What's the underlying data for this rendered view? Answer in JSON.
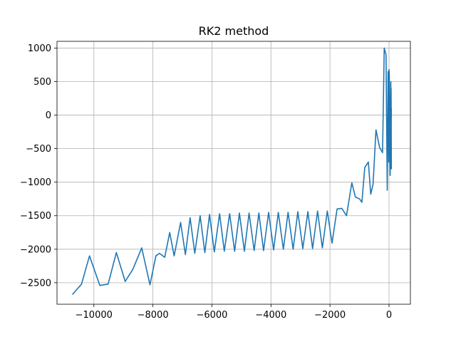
{
  "chart_data": {
    "type": "line",
    "title": "RK2 method",
    "xlabel": "",
    "ylabel": "",
    "xlim": [
      -11250,
      725
    ],
    "ylim": [
      -2820,
      1100
    ],
    "xticks": [
      -10000,
      -8000,
      -6000,
      -4000,
      -2000,
      0
    ],
    "xtick_labels": [
      "−10000",
      "−8000",
      "−6000",
      "−4000",
      "−2000",
      "0"
    ],
    "yticks": [
      -2500,
      -2000,
      -1500,
      -1000,
      -500,
      0,
      500,
      1000
    ],
    "ytick_labels": [
      "−2500",
      "−2000",
      "−1500",
      "−1000",
      "−500",
      "0",
      "500",
      "1000"
    ],
    "grid": true,
    "line_color": "#1f77b4",
    "series": [
      {
        "x": [
          -10720,
          -10420,
          -10150,
          -9800,
          -9520,
          -9240,
          -8940,
          -8680,
          -8380,
          -8100,
          -7900,
          -7780,
          -7600,
          -7430,
          -7280,
          -7060,
          -6900,
          -6740,
          -6580,
          -6400,
          -6240,
          -6080,
          -5920,
          -5740,
          -5580,
          -5400,
          -5230,
          -5070,
          -4900,
          -4740,
          -4570,
          -4410,
          -4250,
          -4080,
          -3910,
          -3750,
          -3580,
          -3420,
          -3250,
          -3090,
          -2920,
          -2750,
          -2590,
          -2420,
          -2260,
          -2090,
          -1930,
          -1760,
          -1600,
          -1440,
          -1260,
          -1140,
          -1000,
          -920,
          -820,
          -700,
          -620,
          -540,
          -440,
          -320,
          -220,
          -160,
          -100,
          -60,
          -30,
          -10,
          0,
          10,
          30,
          60,
          80,
          70,
          40,
          0,
          -20,
          20,
          60,
          80,
          40,
          -10,
          -30,
          10,
          50,
          70,
          30,
          -10,
          0,
          30,
          70,
          60,
          10,
          -20,
          0,
          50,
          20
        ],
        "y": [
          -2670,
          -2520,
          -2100,
          -2540,
          -2520,
          -2050,
          -2480,
          -2300,
          -1980,
          -2530,
          -2100,
          -2060,
          -2120,
          -1750,
          -2100,
          -1600,
          -2080,
          -1530,
          -2060,
          -1500,
          -2050,
          -1480,
          -2040,
          -1470,
          -2030,
          -1470,
          -2030,
          -1460,
          -2030,
          -1460,
          -2020,
          -1460,
          -2020,
          -1450,
          -2010,
          -1450,
          -2000,
          -1450,
          -2000,
          -1440,
          -1990,
          -1440,
          -1990,
          -1430,
          -1980,
          -1430,
          -1910,
          -1400,
          -1390,
          -1500,
          -1010,
          -1220,
          -1250,
          -1300,
          -780,
          -700,
          -1180,
          -1030,
          -220,
          -480,
          -560,
          1000,
          900,
          -1120,
          650,
          -700,
          680,
          600,
          -600,
          500,
          -800,
          400,
          -900,
          300,
          -400,
          200,
          -700,
          100,
          -300,
          0,
          -500,
          -100,
          -200,
          -300,
          -100,
          -400,
          50,
          -250,
          -50,
          -150,
          150,
          -350,
          250,
          -200,
          0
        ]
      }
    ]
  }
}
